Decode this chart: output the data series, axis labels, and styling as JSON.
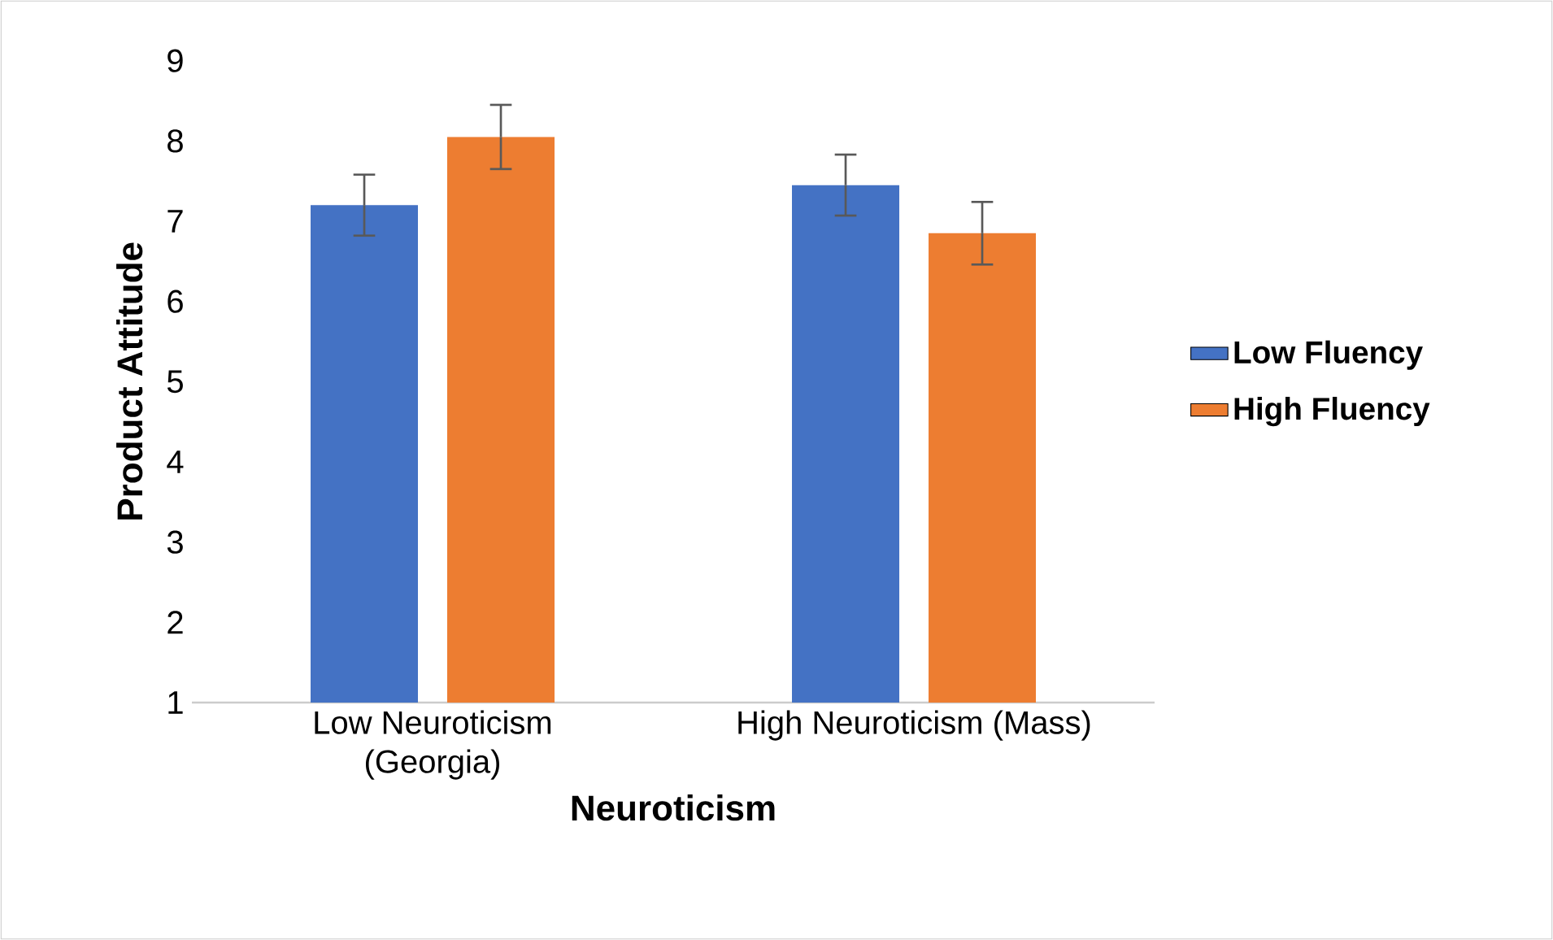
{
  "chart_data": {
    "type": "bar",
    "xlabel": "Neuroticism",
    "ylabel": "Product Attitude",
    "categories": [
      "Low Neuroticism (Georgia)",
      "High Neuroticism (Mass)"
    ],
    "series": [
      {
        "name": "Low Fluency",
        "color": "#4472c4",
        "values": [
          7.2,
          7.45
        ],
        "errors": [
          0.38,
          0.38
        ]
      },
      {
        "name": "High Fluency",
        "color": "#ed7d31",
        "values": [
          8.05,
          6.85
        ],
        "errors": [
          0.4,
          0.39
        ]
      }
    ],
    "ylim": [
      1,
      9
    ],
    "yticks": [
      1,
      2,
      3,
      4,
      5,
      6,
      7,
      8,
      9
    ],
    "grid": false,
    "legend": "right"
  }
}
